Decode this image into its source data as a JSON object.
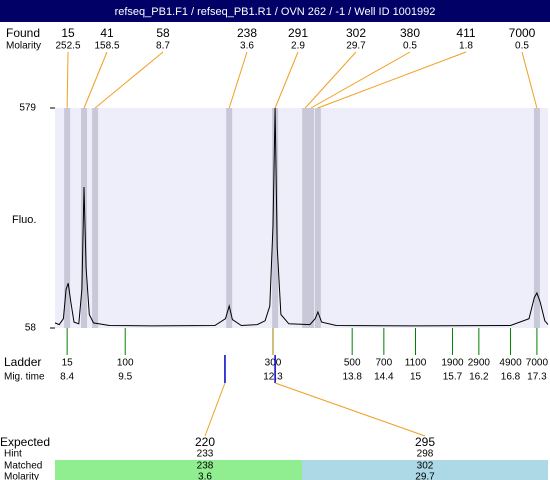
{
  "title": "refseq_PB1.F1 / refseq_PB1.R1 / OVN 262 / -1 / Well ID 1001992",
  "chart_data": {
    "type": "electropherogram",
    "ylabel": "Fluo.",
    "ylim": [
      58,
      579
    ],
    "yticks": [
      58,
      579
    ],
    "xlim": [
      8.17,
      17.51
    ],
    "found": {
      "label": "Found",
      "molarity_label": "Molarity",
      "sizes": [
        15,
        41,
        58,
        238,
        291,
        302,
        380,
        411,
        7000
      ],
      "molarity": [
        252.5,
        158.5,
        8.7,
        3.6,
        2.9,
        29.7,
        0.5,
        1.8,
        0.5
      ],
      "x": [
        8.4,
        8.72,
        8.93,
        11.47,
        12.34,
        12.91,
        13.02,
        13.15,
        17.3
      ]
    },
    "ladder": {
      "label": "Ladder",
      "time_label": "Mig. time",
      "sizes": [
        15,
        100,
        300,
        500,
        700,
        1100,
        1900,
        2900,
        4900,
        7000
      ],
      "x": [
        8.4,
        9.5,
        12.3,
        13.8,
        14.4,
        15,
        15.7,
        16.2,
        16.8,
        17.3
      ]
    },
    "trace": {
      "x": [
        8.17,
        8.25,
        8.33,
        8.38,
        8.42,
        8.47,
        8.53,
        8.62,
        8.68,
        8.72,
        8.76,
        8.82,
        8.9,
        9.2,
        10,
        11.2,
        11.4,
        11.47,
        11.53,
        11.7,
        12.0,
        12.15,
        12.24,
        12.3,
        12.34,
        12.38,
        12.45,
        12.6,
        13.0,
        13.1,
        13.15,
        13.22,
        13.5,
        15,
        16.8,
        17.15,
        17.25,
        17.3,
        17.36,
        17.45,
        17.51
      ],
      "values": [
        70,
        66,
        80,
        150,
        164,
        120,
        72,
        68,
        150,
        392,
        200,
        90,
        70,
        64,
        63,
        64,
        80,
        110,
        78,
        64,
        66,
        75,
        110,
        300,
        579,
        250,
        90,
        68,
        66,
        80,
        96,
        72,
        64,
        63,
        64,
        80,
        130,
        141,
        120,
        75,
        66
      ]
    },
    "expected": {
      "label": "Expected",
      "hint_label": "Hint",
      "matched_label": "Matched",
      "molarity_label": "Molarity",
      "sizes": [
        220,
        295
      ],
      "x": [
        11.39,
        12.34
      ],
      "hint": [
        233,
        298
      ],
      "matched": [
        238,
        302
      ],
      "molarity": [
        3.6,
        29.7
      ]
    }
  }
}
